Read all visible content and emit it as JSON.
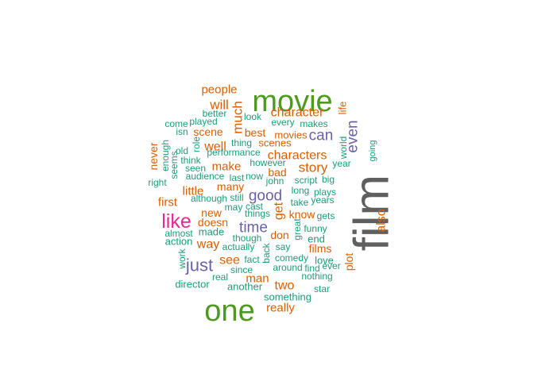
{
  "colors": {
    "green": "#4d9a1f",
    "teal": "#1b9e77",
    "orange": "#d95f02",
    "purple": "#6a61a8",
    "magenta": "#e7298a",
    "gray": "#5f5f5f"
  },
  "words": [
    {
      "id": "film",
      "text": "film",
      "color": "gray"
    },
    {
      "id": "movie",
      "text": "movie",
      "color": "green"
    },
    {
      "id": "one",
      "text": "one",
      "color": "green"
    },
    {
      "id": "like",
      "text": "like",
      "color": "magenta"
    },
    {
      "id": "just",
      "text": "just",
      "color": "purple"
    },
    {
      "id": "good",
      "text": "good",
      "color": "purple"
    },
    {
      "id": "even",
      "text": "even",
      "color": "purple"
    },
    {
      "id": "can",
      "text": "can",
      "color": "purple"
    },
    {
      "id": "time",
      "text": "time",
      "color": "purple"
    },
    {
      "id": "story",
      "text": "story",
      "color": "orange"
    },
    {
      "id": "much",
      "text": "much",
      "color": "orange"
    },
    {
      "id": "will",
      "text": "will",
      "color": "orange"
    },
    {
      "id": "character",
      "text": "character",
      "color": "orange"
    },
    {
      "id": "characters",
      "text": "characters",
      "color": "orange"
    },
    {
      "id": "well",
      "text": "well",
      "color": "orange"
    },
    {
      "id": "also",
      "text": "also",
      "color": "orange"
    },
    {
      "id": "get",
      "text": "get",
      "color": "orange"
    },
    {
      "id": "two",
      "text": "two",
      "color": "orange"
    },
    {
      "id": "see",
      "text": "see",
      "color": "orange"
    },
    {
      "id": "way",
      "text": "way",
      "color": "orange"
    },
    {
      "id": "first",
      "text": "first",
      "color": "orange"
    },
    {
      "id": "make",
      "text": "make",
      "color": "orange"
    },
    {
      "id": "people",
      "text": "people",
      "color": "orange"
    },
    {
      "id": "really",
      "text": "really",
      "color": "orange"
    },
    {
      "id": "man",
      "text": "man",
      "color": "orange"
    },
    {
      "id": "little",
      "text": "little",
      "color": "orange"
    },
    {
      "id": "plot",
      "text": "plot",
      "color": "orange"
    },
    {
      "id": "never",
      "text": "never",
      "color": "orange"
    },
    {
      "id": "scene",
      "text": "scene",
      "color": "orange"
    },
    {
      "id": "bad",
      "text": "bad",
      "color": "orange"
    },
    {
      "id": "life",
      "text": "life",
      "color": "orange"
    },
    {
      "id": "films",
      "text": "films",
      "color": "orange"
    },
    {
      "id": "best",
      "text": "best",
      "color": "orange"
    },
    {
      "id": "many",
      "text": "many",
      "color": "orange"
    },
    {
      "id": "new",
      "text": "new",
      "color": "orange"
    },
    {
      "id": "know",
      "text": "know",
      "color": "orange"
    },
    {
      "id": "don",
      "text": "don",
      "color": "orange"
    },
    {
      "id": "doesn",
      "text": "doesn",
      "color": "orange"
    },
    {
      "id": "scenes",
      "text": "scenes",
      "color": "orange"
    },
    {
      "id": "movies",
      "text": "movies",
      "color": "orange"
    },
    {
      "id": "end",
      "text": "end",
      "color": "teal"
    },
    {
      "id": "love",
      "text": "love",
      "color": "teal"
    },
    {
      "id": "world",
      "text": "world",
      "color": "teal"
    },
    {
      "id": "another",
      "text": "another",
      "color": "teal"
    },
    {
      "id": "something",
      "text": "something",
      "color": "teal"
    },
    {
      "id": "director",
      "text": "director",
      "color": "teal"
    },
    {
      "id": "action",
      "text": "action",
      "color": "teal"
    },
    {
      "id": "work",
      "text": "work",
      "color": "teal"
    },
    {
      "id": "great",
      "text": "great",
      "color": "teal"
    },
    {
      "id": "back",
      "text": "back",
      "color": "teal"
    },
    {
      "id": "made",
      "text": "made",
      "color": "teal"
    },
    {
      "id": "better",
      "text": "better",
      "color": "teal"
    },
    {
      "id": "played",
      "text": "played",
      "color": "teal"
    },
    {
      "id": "come",
      "text": "come",
      "color": "teal"
    },
    {
      "id": "isn",
      "text": "isn",
      "color": "teal"
    },
    {
      "id": "look",
      "text": "look",
      "color": "teal"
    },
    {
      "id": "every",
      "text": "every",
      "color": "teal"
    },
    {
      "id": "makes",
      "text": "makes",
      "color": "teal"
    },
    {
      "id": "thing",
      "text": "thing",
      "color": "teal"
    },
    {
      "id": "performance",
      "text": "performance",
      "color": "teal"
    },
    {
      "id": "enough",
      "text": "enough",
      "color": "teal"
    },
    {
      "id": "old",
      "text": "old",
      "color": "teal"
    },
    {
      "id": "role",
      "text": "role",
      "color": "teal"
    },
    {
      "id": "think",
      "text": "think",
      "color": "teal"
    },
    {
      "id": "seems",
      "text": "seems",
      "color": "teal"
    },
    {
      "id": "seen",
      "text": "seen",
      "color": "teal"
    },
    {
      "id": "however",
      "text": "however",
      "color": "teal"
    },
    {
      "id": "audience",
      "text": "audience",
      "color": "teal"
    },
    {
      "id": "last",
      "text": "last",
      "color": "teal"
    },
    {
      "id": "now",
      "text": "now",
      "color": "teal"
    },
    {
      "id": "john",
      "text": "john",
      "color": "teal"
    },
    {
      "id": "script",
      "text": "script",
      "color": "teal"
    },
    {
      "id": "big",
      "text": "big",
      "color": "teal"
    },
    {
      "id": "year",
      "text": "year",
      "color": "teal"
    },
    {
      "id": "going",
      "text": "going",
      "color": "teal"
    },
    {
      "id": "right",
      "text": "right",
      "color": "teal"
    },
    {
      "id": "although",
      "text": "although",
      "color": "teal"
    },
    {
      "id": "still",
      "text": "still",
      "color": "teal"
    },
    {
      "id": "long",
      "text": "long",
      "color": "teal"
    },
    {
      "id": "plays",
      "text": "plays",
      "color": "teal"
    },
    {
      "id": "take",
      "text": "take",
      "color": "teal"
    },
    {
      "id": "years",
      "text": "years",
      "color": "teal"
    },
    {
      "id": "may",
      "text": "may",
      "color": "teal"
    },
    {
      "id": "cast",
      "text": "cast",
      "color": "teal"
    },
    {
      "id": "things",
      "text": "things",
      "color": "teal"
    },
    {
      "id": "gets",
      "text": "gets",
      "color": "teal"
    },
    {
      "id": "almost",
      "text": "almost",
      "color": "teal"
    },
    {
      "id": "funny",
      "text": "funny",
      "color": "teal"
    },
    {
      "id": "though",
      "text": "though",
      "color": "teal"
    },
    {
      "id": "actually",
      "text": "actually",
      "color": "teal"
    },
    {
      "id": "say",
      "text": "say",
      "color": "teal"
    },
    {
      "id": "fact",
      "text": "fact",
      "color": "teal"
    },
    {
      "id": "comedy",
      "text": "comedy",
      "color": "teal"
    },
    {
      "id": "ever",
      "text": "ever",
      "color": "teal"
    },
    {
      "id": "since",
      "text": "since",
      "color": "teal"
    },
    {
      "id": "around",
      "text": "around",
      "color": "teal"
    },
    {
      "id": "find",
      "text": "find",
      "color": "teal"
    },
    {
      "id": "real",
      "text": "real",
      "color": "teal"
    },
    {
      "id": "nothing",
      "text": "nothing",
      "color": "teal"
    },
    {
      "id": "star",
      "text": "star",
      "color": "teal"
    }
  ]
}
